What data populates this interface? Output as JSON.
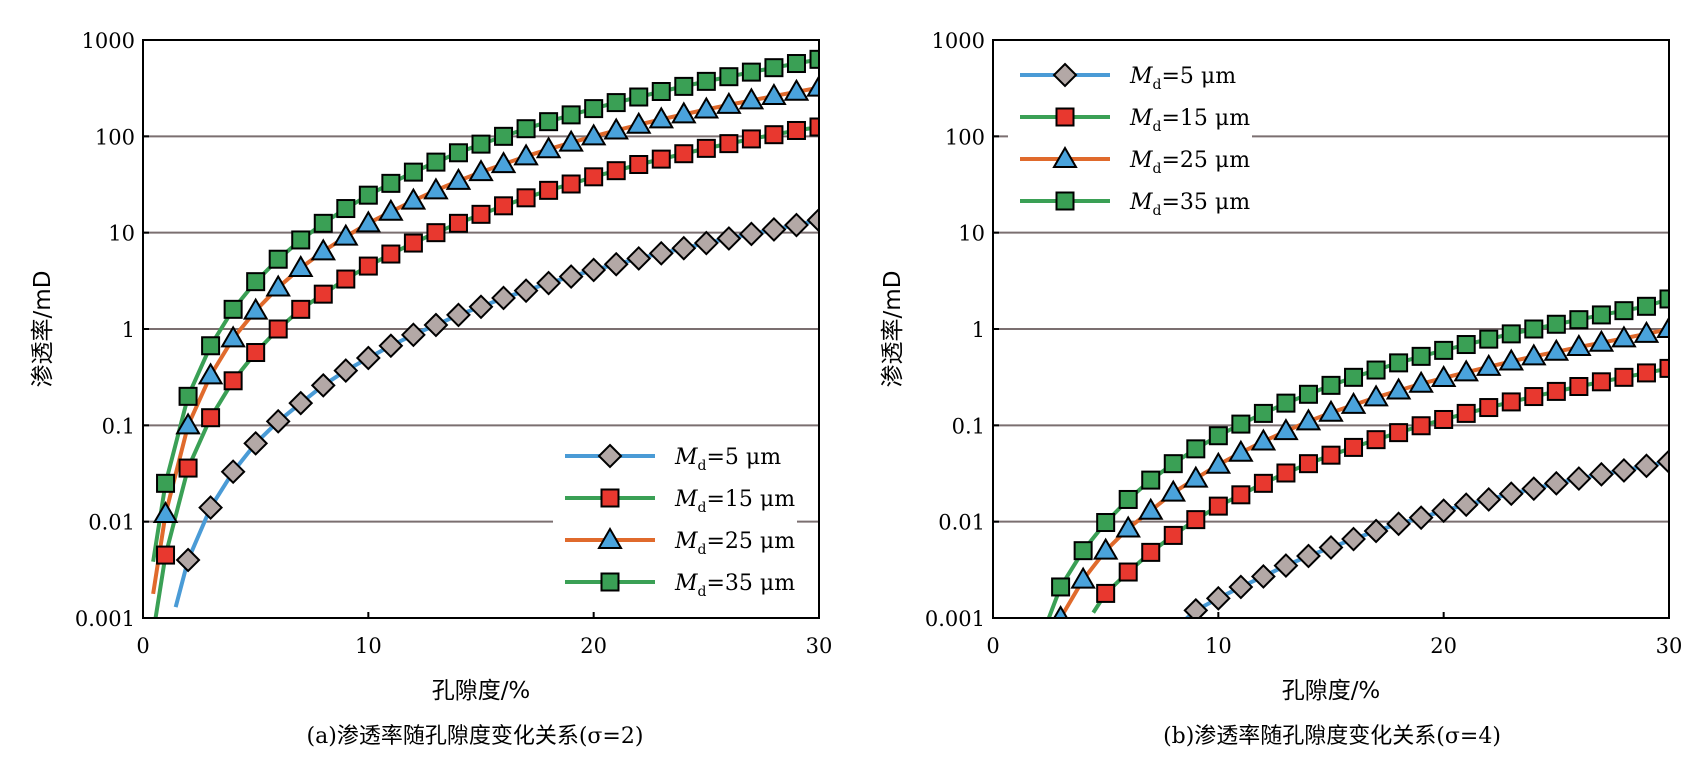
{
  "chart_data": [
    {
      "type": "line",
      "title": "",
      "caption": "(a)渗透率随孔隙度变化关系(σ=2)",
      "xlabel": "孔隙度/%",
      "ylabel": "渗透率/mD",
      "xlim": [
        0,
        30
      ],
      "ylim": [
        0.001,
        1000
      ],
      "yscale": "log",
      "grid": "horizontal",
      "legend": "bottom-right",
      "x_ticks": [
        "0",
        "10",
        "20",
        "30"
      ],
      "y_ticks": [
        "0.001",
        "0.01",
        "0.1",
        "1",
        "10",
        "100",
        "1000"
      ],
      "series": [
        {
          "legend_m": "M",
          "legend_sub": "d",
          "legend_rest": "=5 μm",
          "line_color": "#4a9bd6",
          "marker": "diamond",
          "marker_color": "#b3a8a6",
          "x": [
            2,
            3,
            4,
            5,
            6,
            7,
            8,
            9,
            10,
            11,
            12,
            13,
            14,
            15,
            16,
            17,
            18,
            19,
            20,
            21,
            22,
            23,
            24,
            25,
            26,
            27,
            28,
            29,
            30
          ],
          "y": [
            0.004,
            0.014,
            0.033,
            0.065,
            0.11,
            0.17,
            0.26,
            0.37,
            0.5,
            0.67,
            0.87,
            1.1,
            1.4,
            1.7,
            2.1,
            2.5,
            3.0,
            3.5,
            4.1,
            4.7,
            5.4,
            6.1,
            6.9,
            7.8,
            8.7,
            9.7,
            10.8,
            12.0,
            13.5
          ]
        },
        {
          "legend_m": "M",
          "legend_sub": "d",
          "legend_rest": "=15 μm",
          "line_color": "#3aa055",
          "marker": "square",
          "marker_color": "#e8382f",
          "x": [
            1,
            2,
            3,
            4,
            5,
            6,
            7,
            8,
            9,
            10,
            11,
            12,
            13,
            14,
            15,
            16,
            17,
            18,
            19,
            20,
            21,
            22,
            23,
            24,
            25,
            26,
            27,
            28,
            29,
            30
          ],
          "y": [
            0.0045,
            0.036,
            0.12,
            0.29,
            0.57,
            1.0,
            1.6,
            2.3,
            3.3,
            4.5,
            6.0,
            7.8,
            10,
            12.5,
            15.5,
            19,
            23,
            27.5,
            32,
            38,
            44,
            51,
            58,
            66,
            75,
            84,
            94,
            104,
            115,
            125
          ]
        },
        {
          "legend_m": "M",
          "legend_sub": "d",
          "legend_rest": "=25 μm",
          "line_color": "#e06a2c",
          "marker": "triangle",
          "marker_color": "#4aa3dc",
          "x": [
            1,
            2,
            3,
            4,
            5,
            6,
            7,
            8,
            9,
            10,
            11,
            12,
            13,
            14,
            15,
            16,
            17,
            18,
            19,
            20,
            21,
            22,
            23,
            24,
            25,
            26,
            27,
            28,
            29,
            30
          ],
          "y": [
            0.012,
            0.1,
            0.33,
            0.8,
            1.55,
            2.7,
            4.3,
            6.4,
            9.1,
            12.5,
            16.5,
            21.5,
            27.5,
            34.5,
            42.5,
            51.5,
            62,
            73.5,
            86,
            100,
            115,
            132,
            150,
            169,
            190,
            212,
            236,
            262,
            290,
            320
          ]
        },
        {
          "legend_m": "M",
          "legend_sub": "d",
          "legend_rest": "=35 μm",
          "line_color": "#3aa055",
          "marker": "square",
          "marker_color": "#3aa055",
          "x": [
            1,
            2,
            3,
            4,
            5,
            6,
            7,
            8,
            9,
            10,
            11,
            12,
            13,
            14,
            15,
            16,
            17,
            18,
            19,
            20,
            21,
            22,
            23,
            24,
            25,
            26,
            27,
            28,
            29,
            30
          ],
          "y": [
            0.025,
            0.2,
            0.67,
            1.6,
            3.1,
            5.3,
            8.4,
            12.5,
            17.8,
            24.5,
            32.5,
            42.5,
            54,
            67.5,
            83,
            100,
            120,
            142,
            167,
            194,
            224,
            256,
            292,
            330,
            372,
            416,
            464,
            516,
            570,
            630
          ]
        }
      ]
    },
    {
      "type": "line",
      "title": "",
      "caption": "(b)渗透率随孔隙度变化关系(σ=4)",
      "xlabel": "孔隙度/%",
      "ylabel": "渗透率/mD",
      "xlim": [
        0,
        30
      ],
      "ylim": [
        0.001,
        1000
      ],
      "yscale": "log",
      "grid": "horizontal",
      "legend": "top-left",
      "x_ticks": [
        "0",
        "10",
        "20",
        "30"
      ],
      "y_ticks": [
        "0.001",
        "0.01",
        "0.1",
        "1",
        "10",
        "100",
        "1000"
      ],
      "series": [
        {
          "legend_m": "M",
          "legend_sub": "d",
          "legend_rest": "=5 μm",
          "line_color": "#4a9bd6",
          "marker": "diamond",
          "marker_color": "#b3a8a6",
          "x": [
            9,
            10,
            11,
            12,
            13,
            14,
            15,
            16,
            17,
            18,
            19,
            20,
            21,
            22,
            23,
            24,
            25,
            26,
            27,
            28,
            29,
            30
          ],
          "y": [
            0.0012,
            0.0016,
            0.0021,
            0.0027,
            0.0035,
            0.0044,
            0.0054,
            0.0066,
            0.008,
            0.0095,
            0.011,
            0.013,
            0.015,
            0.017,
            0.0195,
            0.022,
            0.025,
            0.028,
            0.031,
            0.034,
            0.038,
            0.042
          ]
        },
        {
          "legend_m": "M",
          "legend_sub": "d",
          "legend_rest": "=15 μm",
          "line_color": "#3aa055",
          "marker": "square",
          "marker_color": "#e8382f",
          "x": [
            5,
            6,
            7,
            8,
            9,
            10,
            11,
            12,
            13,
            14,
            15,
            16,
            17,
            18,
            19,
            20,
            21,
            22,
            23,
            24,
            25,
            26,
            27,
            28,
            29,
            30
          ],
          "y": [
            0.0018,
            0.003,
            0.0048,
            0.0072,
            0.0105,
            0.0145,
            0.019,
            0.025,
            0.032,
            0.04,
            0.049,
            0.059,
            0.071,
            0.084,
            0.099,
            0.115,
            0.133,
            0.153,
            0.175,
            0.199,
            0.225,
            0.253,
            0.283,
            0.315,
            0.35,
            0.39
          ]
        },
        {
          "legend_m": "M",
          "legend_sub": "d",
          "legend_rest": "=25 μm",
          "line_color": "#e06a2c",
          "marker": "triangle",
          "marker_color": "#4aa3dc",
          "x": [
            3,
            4,
            5,
            6,
            7,
            8,
            9,
            10,
            11,
            12,
            13,
            14,
            15,
            16,
            17,
            18,
            19,
            20,
            21,
            22,
            23,
            24,
            25,
            26,
            27,
            28,
            29,
            30
          ],
          "y": [
            0.001,
            0.0025,
            0.005,
            0.0085,
            0.013,
            0.02,
            0.028,
            0.039,
            0.052,
            0.068,
            0.087,
            0.11,
            0.135,
            0.163,
            0.195,
            0.23,
            0.27,
            0.31,
            0.355,
            0.405,
            0.46,
            0.52,
            0.58,
            0.65,
            0.72,
            0.8,
            0.89,
            1.0
          ]
        },
        {
          "legend_m": "M",
          "legend_sub": "d",
          "legend_rest": "=35 μm",
          "line_color": "#3aa055",
          "marker": "square",
          "marker_color": "#3aa055",
          "x": [
            3,
            4,
            5,
            6,
            7,
            8,
            9,
            10,
            11,
            12,
            13,
            14,
            15,
            16,
            17,
            18,
            19,
            20,
            21,
            22,
            23,
            24,
            25,
            26,
            27,
            28,
            29,
            30
          ],
          "y": [
            0.0021,
            0.005,
            0.0098,
            0.017,
            0.027,
            0.04,
            0.057,
            0.078,
            0.103,
            0.133,
            0.17,
            0.21,
            0.26,
            0.315,
            0.375,
            0.445,
            0.52,
            0.6,
            0.69,
            0.785,
            0.89,
            1.0,
            1.12,
            1.25,
            1.4,
            1.55,
            1.72,
            2.05
          ]
        }
      ]
    }
  ]
}
